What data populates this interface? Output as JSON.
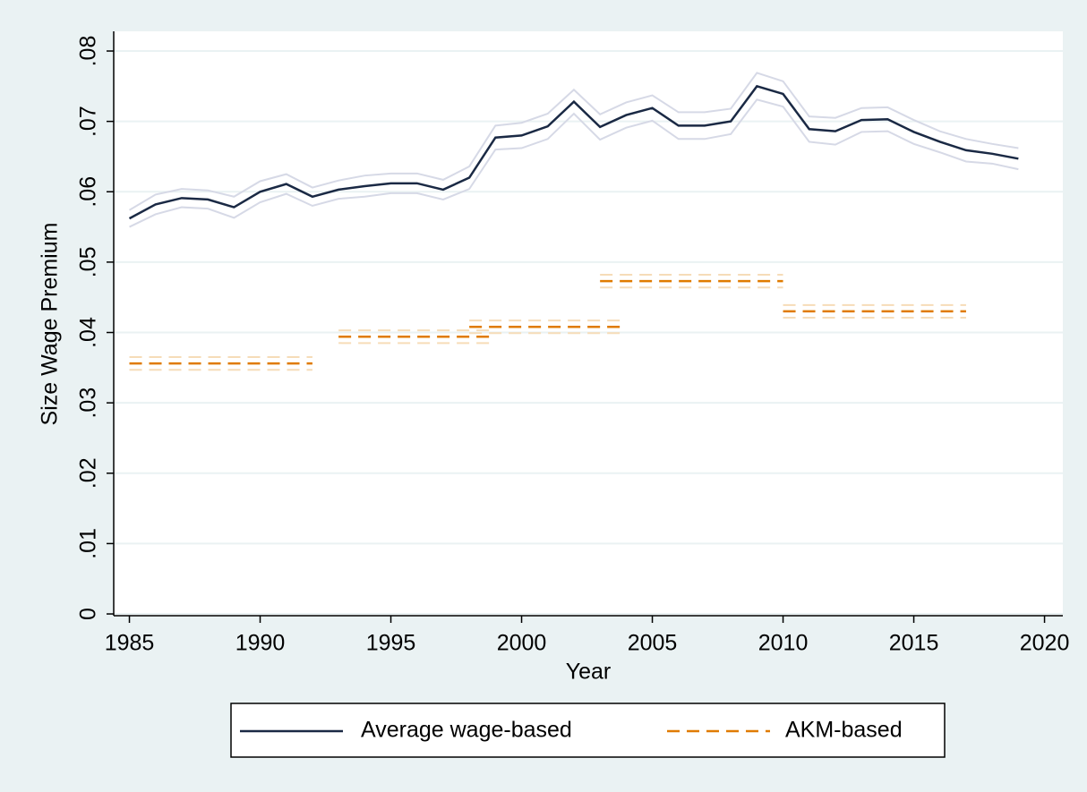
{
  "chart_data": {
    "type": "line",
    "x_label": "Year",
    "y_label": "Size Wage Premium",
    "xlim": [
      1984.4,
      2020.7
    ],
    "ylim": [
      -0.00025,
      0.0828
    ],
    "xticks": [
      1985,
      1990,
      1995,
      2000,
      2005,
      2010,
      2015,
      2020
    ],
    "yticks": [
      0,
      {
        "value": 0.01,
        "label": ".01"
      },
      {
        "value": 0.02,
        "label": ".02"
      },
      {
        "value": 0.03,
        "label": ".03"
      },
      {
        "value": 0.04,
        "label": ".04"
      },
      {
        "value": 0.05,
        "label": ".05"
      },
      {
        "value": 0.06,
        "label": ".06"
      },
      {
        "value": 0.07,
        "label": ".07"
      },
      {
        "value": 0.08,
        "label": ".08"
      }
    ],
    "grid": true,
    "legend": "bottom",
    "series": [
      {
        "name": "Average wage-based",
        "color": "#1a2944",
        "band_color": "#d6d9e6",
        "dash": false,
        "x": [
          1985,
          1986,
          1987,
          1988,
          1989,
          1990,
          1991,
          1992,
          1993,
          1994,
          1995,
          1996,
          1997,
          1998,
          1999,
          2000,
          2001,
          2002,
          2003,
          2004,
          2005,
          2006,
          2007,
          2008,
          2009,
          2010,
          2011,
          2012,
          2013,
          2014,
          2015,
          2016,
          2017,
          2018,
          2019
        ],
        "values": [
          0.0562,
          0.0582,
          0.0591,
          0.0589,
          0.0578,
          0.06,
          0.0611,
          0.0593,
          0.0603,
          0.0608,
          0.0612,
          0.0612,
          0.0603,
          0.062,
          0.0677,
          0.068,
          0.0693,
          0.0728,
          0.0692,
          0.0709,
          0.0719,
          0.0694,
          0.0694,
          0.07,
          0.075,
          0.0739,
          0.0689,
          0.0686,
          0.0702,
          0.0703,
          0.0685,
          0.0671,
          0.0659,
          0.0654,
          0.0647
        ],
        "upper": [
          0.0574,
          0.0596,
          0.0604,
          0.0602,
          0.0593,
          0.0615,
          0.0625,
          0.0606,
          0.0616,
          0.0623,
          0.0626,
          0.0626,
          0.0617,
          0.0636,
          0.0694,
          0.0698,
          0.0711,
          0.0745,
          0.071,
          0.0727,
          0.0737,
          0.0713,
          0.0713,
          0.0718,
          0.0769,
          0.0757,
          0.0707,
          0.0705,
          0.0719,
          0.072,
          0.0702,
          0.0686,
          0.0675,
          0.0668,
          0.0662
        ],
        "lower": [
          0.055,
          0.0568,
          0.0578,
          0.0576,
          0.0563,
          0.0585,
          0.0597,
          0.058,
          0.059,
          0.0593,
          0.0598,
          0.0598,
          0.0589,
          0.0604,
          0.066,
          0.0662,
          0.0675,
          0.0711,
          0.0674,
          0.0691,
          0.0701,
          0.0675,
          0.0675,
          0.0682,
          0.0731,
          0.0721,
          0.0671,
          0.0667,
          0.0685,
          0.0686,
          0.0668,
          0.0656,
          0.0643,
          0.064,
          0.0632
        ]
      },
      {
        "name": "AKM-based",
        "color": "#e07b00",
        "band_color": "#f6dcb8",
        "dash": true,
        "segments": [
          {
            "x": [
              1985,
              1992
            ],
            "value": 0.0356,
            "upper": 0.0365,
            "lower": 0.0347
          },
          {
            "x": [
              1993,
              1999
            ],
            "value": 0.0394,
            "upper": 0.0403,
            "lower": 0.0385
          },
          {
            "x": [
              1998,
              2004
            ],
            "value": 0.0408,
            "upper": 0.0417,
            "lower": 0.0399
          },
          {
            "x": [
              2003,
              2010
            ],
            "value": 0.0473,
            "upper": 0.0482,
            "lower": 0.0464
          },
          {
            "x": [
              2010,
              2017
            ],
            "value": 0.043,
            "upper": 0.0439,
            "lower": 0.0421
          }
        ]
      }
    ]
  }
}
